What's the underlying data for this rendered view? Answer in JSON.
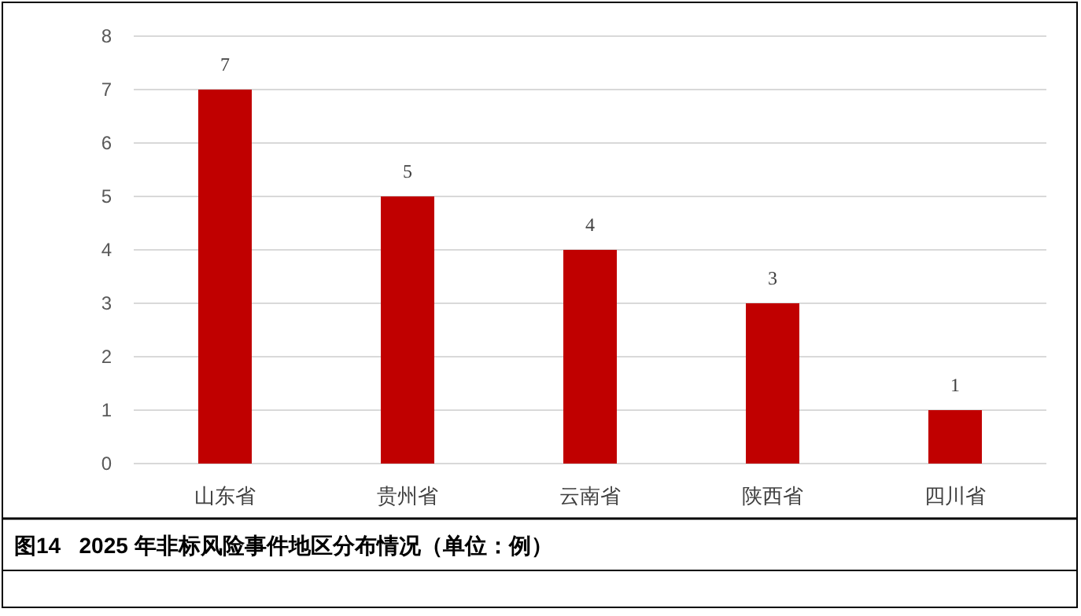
{
  "chart_data": {
    "type": "bar",
    "title": "图14   2025 年非标风险事件地区分布情况（单位：例）",
    "categories": [
      "山东省",
      "贵州省",
      "云南省",
      "陕西省",
      "四川省"
    ],
    "values": [
      7,
      5,
      4,
      3,
      1
    ],
    "color": "#c00000",
    "ylim": [
      0,
      8
    ],
    "yticks": [
      0,
      1,
      2,
      3,
      4,
      5,
      6,
      7,
      8
    ],
    "grid": "y",
    "data_labels": true
  }
}
